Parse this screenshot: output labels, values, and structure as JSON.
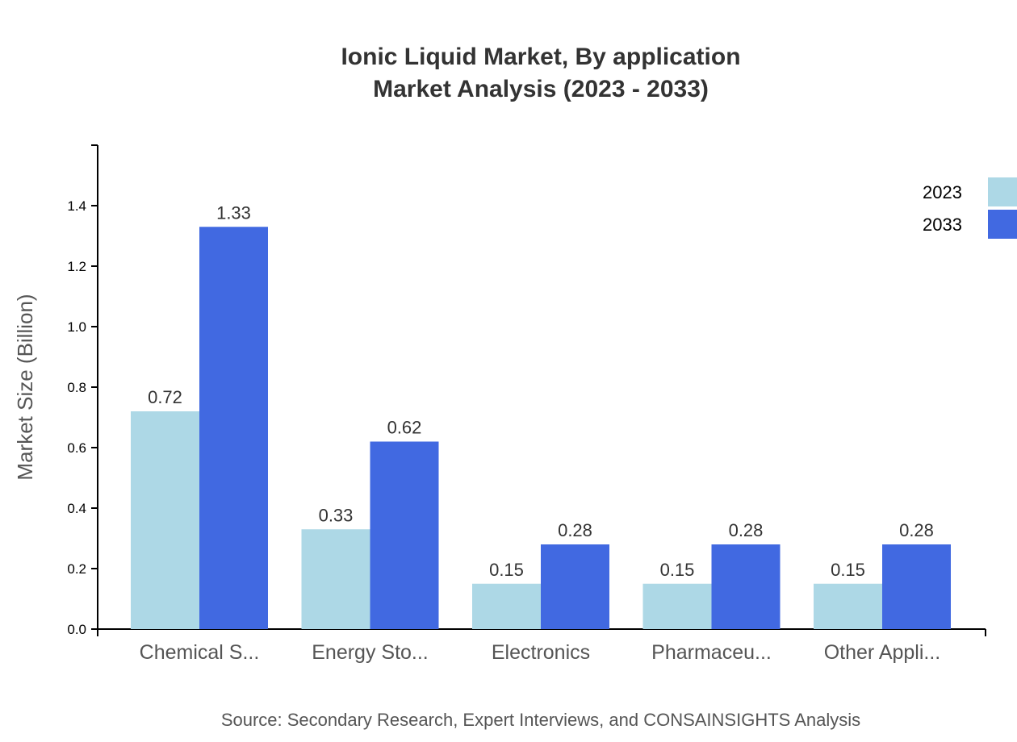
{
  "chart_data": {
    "type": "bar",
    "title": "Ionic Liquid Market, By application",
    "subtitle": "Market Analysis (2023 - 2033)",
    "xlabel": "",
    "ylabel": "Market Size (Billion)",
    "ylim": [
      0,
      1.6
    ],
    "yticks": [
      "0.0",
      "0.2",
      "0.4",
      "0.6",
      "0.8",
      "1.0",
      "1.2",
      "1.4"
    ],
    "grid": false,
    "legend_position": "top-right",
    "categories": [
      "Chemical S...",
      "Energy Sto...",
      "Electronics",
      "Pharmaceu...",
      "Other Appli..."
    ],
    "series": [
      {
        "name": "2023",
        "color": "#add8e6",
        "values": [
          0.72,
          0.33,
          0.15,
          0.15,
          0.15
        ]
      },
      {
        "name": "2033",
        "color": "#4169e1",
        "values": [
          1.33,
          0.62,
          0.28,
          0.28,
          0.28
        ]
      }
    ],
    "source": "Source: Secondary Research, Expert Interviews, and CONSAINSIGHTS Analysis"
  }
}
